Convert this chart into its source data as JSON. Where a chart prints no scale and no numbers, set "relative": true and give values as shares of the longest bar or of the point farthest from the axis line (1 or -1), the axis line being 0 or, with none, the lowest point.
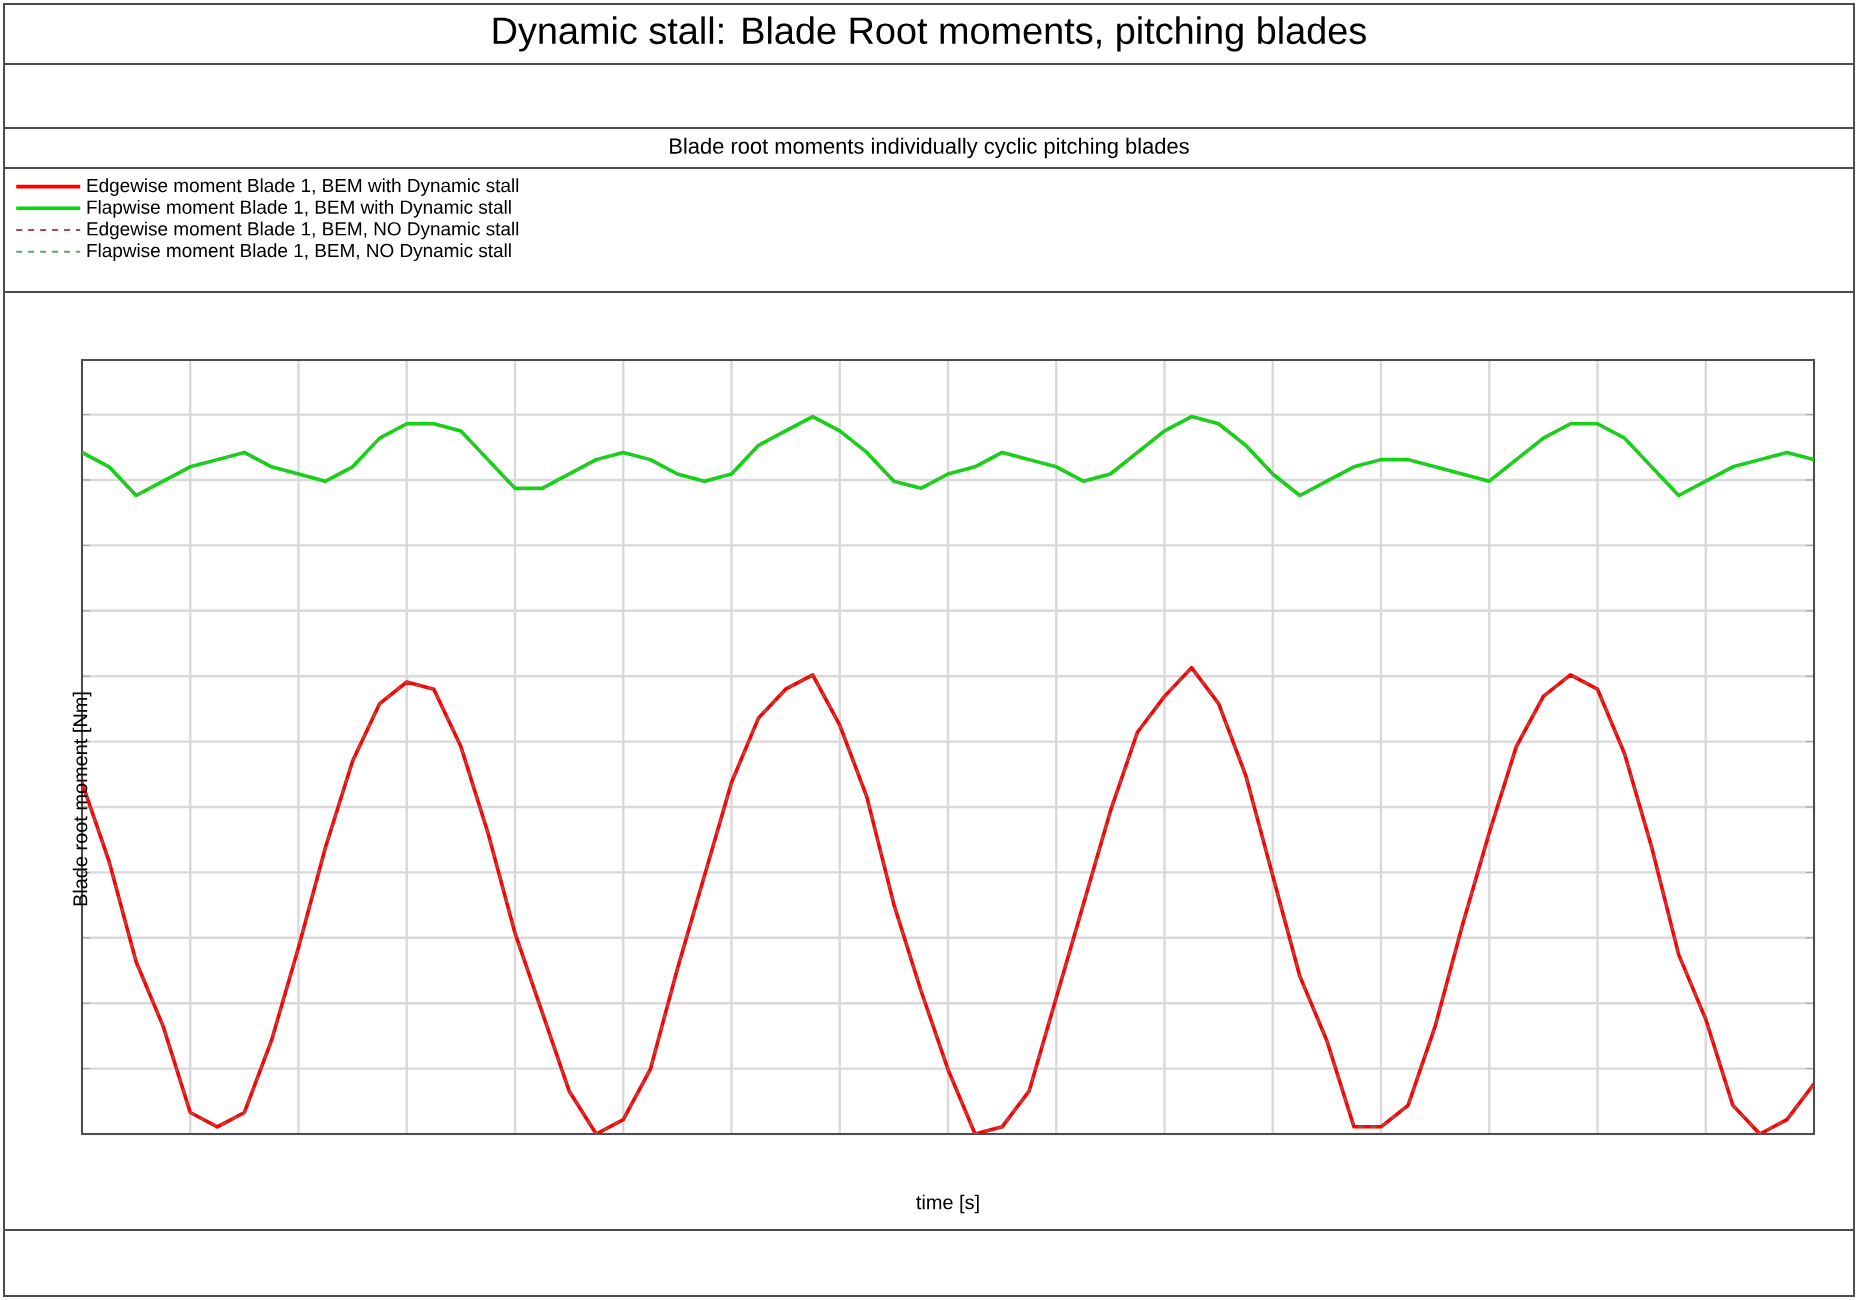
{
  "chart_data": {
    "type": "line",
    "title": "Dynamic stall: Blade Root moments, pitching blades",
    "subtitle": "Blade root moments individually cyclic pitching blades",
    "xlabel": "time [s]",
    "ylabel": "Blade root moment [Nm]",
    "relative": true,
    "categories": [
      null,
      null,
      null,
      null,
      null,
      null,
      null,
      null,
      null,
      null,
      null,
      null,
      null,
      null,
      null,
      null,
      null,
      null,
      null,
      null,
      null,
      null,
      null,
      null,
      null,
      null,
      null,
      null,
      null,
      null,
      null,
      null,
      null,
      null,
      null,
      null,
      null,
      null,
      null,
      null,
      null,
      null,
      null,
      null,
      null,
      null,
      null,
      null,
      null,
      null,
      null,
      null,
      null,
      null,
      null,
      null,
      null,
      null,
      null,
      null,
      null,
      null,
      null,
      null,
      null
    ],
    "grid": true,
    "legend": "top",
    "series": [
      {
        "name": "Edgewise moment Blade 1, BEM with Dynamic stall",
        "color": "#ff0000",
        "line_style": "solid",
        "values": [
          0.49,
          0.38,
          0.24,
          0.15,
          0.03,
          0.01,
          0.03,
          0.13,
          0.26,
          0.4,
          0.52,
          0.6,
          0.63,
          0.62,
          0.54,
          0.42,
          0.28,
          0.17,
          0.06,
          0.0,
          0.02,
          0.09,
          0.23,
          0.36,
          0.49,
          0.58,
          0.62,
          0.64,
          0.57,
          0.47,
          0.32,
          0.2,
          0.09,
          0.0,
          0.01,
          0.06,
          0.19,
          0.32,
          0.45,
          0.56,
          0.61,
          0.65,
          0.6,
          0.5,
          0.36,
          0.22,
          0.13,
          0.01,
          0.01,
          0.04,
          0.15,
          0.29,
          0.42,
          0.54,
          0.61,
          0.64,
          0.62,
          0.53,
          0.4,
          0.25,
          0.16,
          0.04,
          0.0,
          0.02,
          0.07
        ]
      },
      {
        "name": "Flapwise moment Blade 1, BEM with Dynamic stall",
        "color": "#00dd00",
        "line_style": "solid",
        "values": [
          0.95,
          0.93,
          0.89,
          0.91,
          0.93,
          0.94,
          0.95,
          0.93,
          0.92,
          0.91,
          0.93,
          0.97,
          0.99,
          0.99,
          0.98,
          0.94,
          0.9,
          0.9,
          0.92,
          0.94,
          0.95,
          0.94,
          0.92,
          0.91,
          0.92,
          0.96,
          0.98,
          1.0,
          0.98,
          0.95,
          0.91,
          0.9,
          0.92,
          0.93,
          0.95,
          0.94,
          0.93,
          0.91,
          0.92,
          0.95,
          0.98,
          1.0,
          0.99,
          0.96,
          0.92,
          0.89,
          0.91,
          0.93,
          0.94,
          0.94,
          0.93,
          0.92,
          0.91,
          0.94,
          0.97,
          0.99,
          0.99,
          0.97,
          0.93,
          0.89,
          0.91,
          0.93,
          0.94,
          0.95,
          0.94
        ]
      },
      {
        "name": "Edgewise moment Blade 1, BEM, NO Dynamic stall",
        "color": "#b04848",
        "line_style": "dashed",
        "values": [
          0.49,
          0.38,
          0.24,
          0.15,
          0.03,
          0.01,
          0.03,
          0.13,
          0.26,
          0.4,
          0.52,
          0.6,
          0.63,
          0.62,
          0.54,
          0.42,
          0.28,
          0.17,
          0.06,
          0.0,
          0.02,
          0.09,
          0.23,
          0.36,
          0.49,
          0.58,
          0.62,
          0.64,
          0.57,
          0.47,
          0.32,
          0.2,
          0.09,
          0.0,
          0.01,
          0.06,
          0.19,
          0.32,
          0.45,
          0.56,
          0.61,
          0.65,
          0.6,
          0.5,
          0.36,
          0.22,
          0.13,
          0.01,
          0.01,
          0.04,
          0.15,
          0.29,
          0.42,
          0.54,
          0.61,
          0.64,
          0.62,
          0.53,
          0.4,
          0.25,
          0.16,
          0.04,
          0.0,
          0.02,
          0.07
        ]
      },
      {
        "name": "Flapwise moment Blade 1, BEM, NO Dynamic stall",
        "color": "#5aa85a",
        "line_style": "dashed",
        "values": [
          0.95,
          0.93,
          0.89,
          0.91,
          0.93,
          0.94,
          0.95,
          0.93,
          0.92,
          0.91,
          0.93,
          0.97,
          0.99,
          0.99,
          0.98,
          0.94,
          0.9,
          0.9,
          0.92,
          0.94,
          0.95,
          0.94,
          0.92,
          0.91,
          0.92,
          0.96,
          0.98,
          1.0,
          0.98,
          0.95,
          0.91,
          0.9,
          0.92,
          0.93,
          0.95,
          0.94,
          0.93,
          0.91,
          0.92,
          0.95,
          0.98,
          1.0,
          0.99,
          0.96,
          0.92,
          0.89,
          0.91,
          0.93,
          0.94,
          0.94,
          0.93,
          0.92,
          0.91,
          0.94,
          0.97,
          0.99,
          0.99,
          0.97,
          0.93,
          0.89,
          0.91,
          0.93,
          0.94,
          0.95,
          0.94
        ]
      }
    ]
  }
}
